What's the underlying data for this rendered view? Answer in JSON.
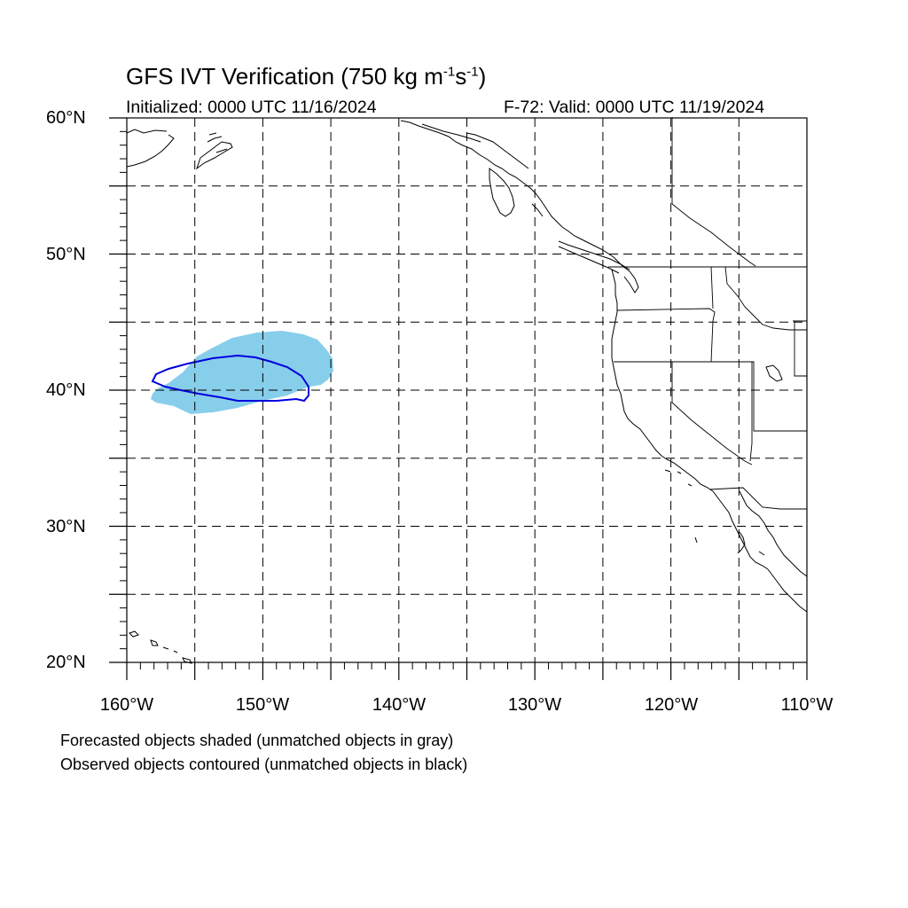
{
  "header": {
    "title_main": "GFS IVT Verification (750 kg m",
    "title_sup1": "-1",
    "title_mid": "s",
    "title_sup2": "-1",
    "title_end": ")",
    "initialized": "Initialized: 0000 UTC 11/16/2024",
    "valid": "F-72: Valid: 0000 UTC 11/19/2024"
  },
  "axes": {
    "lat_labels": [
      "60°N",
      "50°N",
      "40°N",
      "30°N",
      "20°N"
    ],
    "lon_labels": [
      "160°W",
      "150°W",
      "140°W",
      "130°W",
      "120°W",
      "110°W"
    ],
    "lat_range": [
      20,
      60
    ],
    "lon_range": [
      -160,
      -110
    ],
    "grid": "dashed, every 5°"
  },
  "legend": {
    "line1": "Forecasted objects shaded (unmatched objects in gray)",
    "line2": "Observed objects contoured (unmatched objects in black)"
  },
  "objects": {
    "forecast_color": "#87ceeb",
    "observed_color": "#0000dd"
  }
}
